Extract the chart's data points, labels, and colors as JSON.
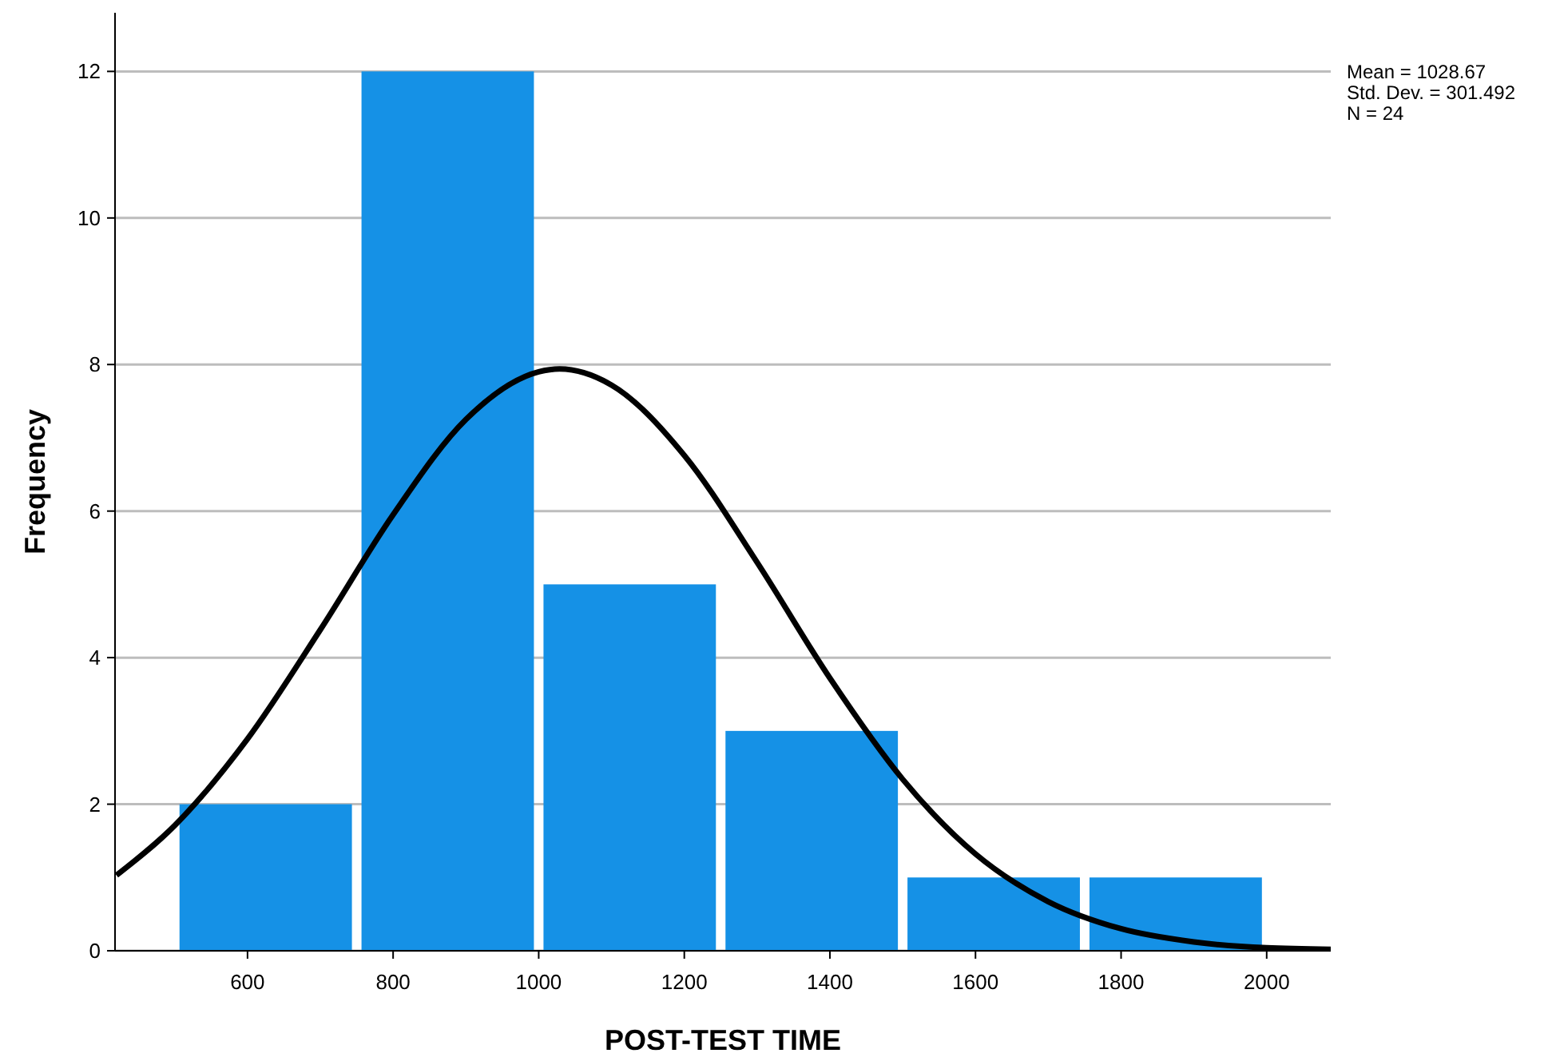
{
  "chart_data": {
    "type": "histogram",
    "xlabel": "POST-TEST TIME",
    "ylabel": "Frequency",
    "bins": [
      500,
      750,
      1000,
      1250,
      1500,
      1750,
      2000
    ],
    "values": [
      2,
      12,
      5,
      3,
      1,
      1
    ],
    "color": "#1591e6",
    "xlim": [
      418,
      2088
    ],
    "xticks": [
      600,
      800,
      1000,
      1200,
      1400,
      1600,
      1800,
      2000
    ],
    "ylim": [
      0,
      12.8
    ],
    "yticks": [
      0,
      2,
      4,
      6,
      8,
      10,
      12
    ],
    "grid": "y",
    "series": [
      {
        "type": "line",
        "color": "#000000",
        "marker": "none",
        "x": [
          420,
          500,
          600,
          700,
          800,
          900,
          1000,
          1028.67,
          1100,
          1200,
          1300,
          1400,
          1500,
          1600,
          1700,
          1800,
          1900,
          2000,
          2088
        ],
        "values": [
          1.03,
          1.71,
          2.89,
          4.38,
          5.95,
          7.25,
          7.9,
          7.94,
          7.72,
          6.76,
          5.3,
          3.72,
          2.34,
          1.32,
          0.67,
          0.3,
          0.12,
          0.04,
          0.02
        ]
      }
    ],
    "annotations": [
      "Mean = 1028.67",
      "Std. Dev. = 301.492",
      "N = 24"
    ]
  }
}
